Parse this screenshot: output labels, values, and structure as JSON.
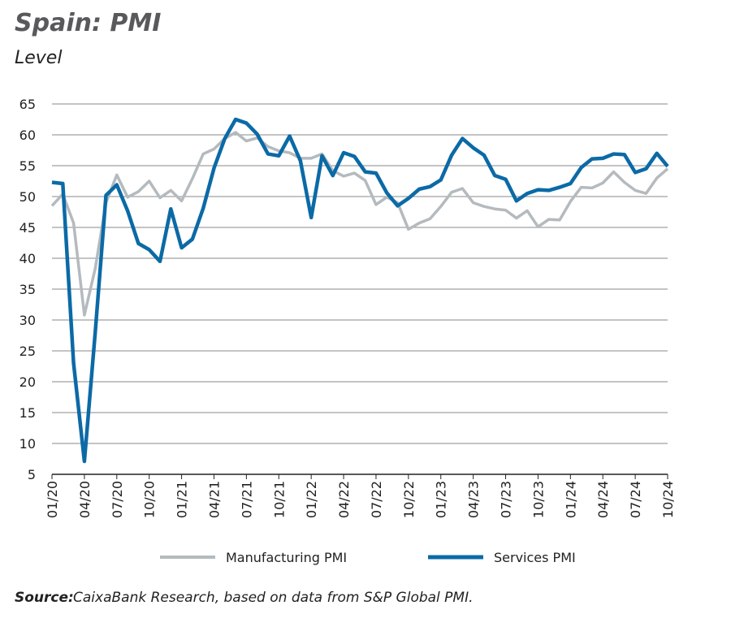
{
  "chart_data": {
    "type": "line",
    "title": "Spain: PMI",
    "subtitle": "Level",
    "categories": [
      "01/20",
      null,
      null,
      "04/20",
      null,
      null,
      "07/20",
      null,
      null,
      "10/20",
      null,
      null,
      "01/21",
      null,
      null,
      "04/21",
      null,
      null,
      "07/21",
      null,
      null,
      "10/21",
      null,
      null,
      "01/22",
      null,
      null,
      "04/22",
      null,
      null,
      "07/22",
      null,
      null,
      "10/22",
      null,
      null,
      "01/23",
      null,
      null,
      "04/23",
      null,
      null,
      "07/23",
      null,
      null,
      "10/23",
      null,
      null,
      "01/24",
      null,
      null,
      "04/24",
      null,
      null,
      "07/24",
      null,
      null,
      "10/24"
    ],
    "series": [
      {
        "name": "Manufacturing PMI",
        "color": "#b4babe",
        "values": [
          48.5,
          50.4,
          45.7,
          30.8,
          38.3,
          49.0,
          53.5,
          49.9,
          50.8,
          52.5,
          49.8,
          51.0,
          49.3,
          52.9,
          56.9,
          57.7,
          59.4,
          60.4,
          59.0,
          59.5,
          58.1,
          57.4,
          57.1,
          56.2,
          56.2,
          56.9,
          54.2,
          53.3,
          53.8,
          52.6,
          48.7,
          49.9,
          49.0,
          44.7,
          45.7,
          46.4,
          48.4,
          50.7,
          51.3,
          49.0,
          48.4,
          48.0,
          47.8,
          46.5,
          47.7,
          45.1,
          46.3,
          46.2,
          49.2,
          51.5,
          51.4,
          52.2,
          54.0,
          52.3,
          51.0,
          50.5,
          53.0,
          54.5
        ]
      },
      {
        "name": "Services PMI",
        "color": "#0b6aa6",
        "values": [
          52.3,
          52.1,
          23.0,
          7.1,
          27.9,
          50.2,
          51.9,
          47.7,
          42.4,
          41.4,
          39.5,
          48.0,
          41.7,
          43.1,
          48.1,
          54.6,
          59.4,
          62.5,
          61.9,
          60.1,
          56.9,
          56.6,
          59.8,
          55.8,
          46.6,
          56.6,
          53.4,
          57.1,
          56.5,
          54.0,
          53.8,
          50.6,
          48.5,
          49.7,
          51.2,
          51.6,
          52.7,
          56.7,
          59.4,
          57.9,
          56.7,
          53.4,
          52.8,
          49.3,
          50.5,
          51.1,
          51.0,
          51.5,
          52.1,
          54.7,
          56.1,
          56.2,
          56.9,
          56.8,
          53.9,
          54.5,
          57.0,
          54.9
        ]
      }
    ],
    "ylim": [
      5,
      65
    ],
    "yticks": [
      5,
      10,
      15,
      20,
      25,
      30,
      35,
      40,
      45,
      50,
      55,
      60,
      65
    ],
    "grid": true,
    "legend": "bottom",
    "source_label": "Source:",
    "source": "CaixaBank Research, based on data from S&P Global PMI."
  }
}
